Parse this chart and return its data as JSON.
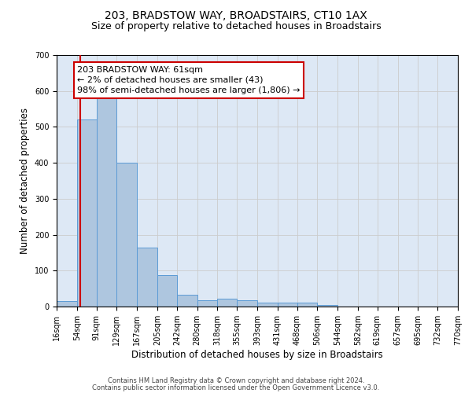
{
  "title1": "203, BRADSTOW WAY, BROADSTAIRS, CT10 1AX",
  "title2": "Size of property relative to detached houses in Broadstairs",
  "xlabel": "Distribution of detached houses by size in Broadstairs",
  "ylabel": "Number of detached properties",
  "bin_edges": [
    16,
    54,
    91,
    129,
    167,
    205,
    242,
    280,
    318,
    355,
    393,
    431,
    468,
    506,
    544,
    582,
    619,
    657,
    695,
    732,
    770
  ],
  "bar_heights": [
    15,
    520,
    580,
    400,
    165,
    88,
    32,
    18,
    22,
    18,
    10,
    12,
    12,
    5,
    0,
    0,
    0,
    0,
    0,
    0
  ],
  "bar_color": "#aec6df",
  "bar_edge_color": "#5b9bd5",
  "property_size": 61,
  "red_line_color": "#cc0000",
  "annotation_text": "203 BRADSTOW WAY: 61sqm\n← 2% of detached houses are smaller (43)\n98% of semi-detached houses are larger (1,806) →",
  "annotation_box_color": "#ffffff",
  "annotation_box_edge": "#cc0000",
  "ylim": [
    0,
    700
  ],
  "yticks": [
    0,
    100,
    200,
    300,
    400,
    500,
    600,
    700
  ],
  "grid_color": "#cccccc",
  "bg_color": "#dde8f5",
  "footer1": "Contains HM Land Registry data © Crown copyright and database right 2024.",
  "footer2": "Contains public sector information licensed under the Open Government Licence v3.0.",
  "title1_fontsize": 10,
  "title2_fontsize": 9,
  "tick_label_fontsize": 7,
  "axis_label_fontsize": 8.5,
  "footer_fontsize": 6,
  "annotation_fontsize": 8
}
